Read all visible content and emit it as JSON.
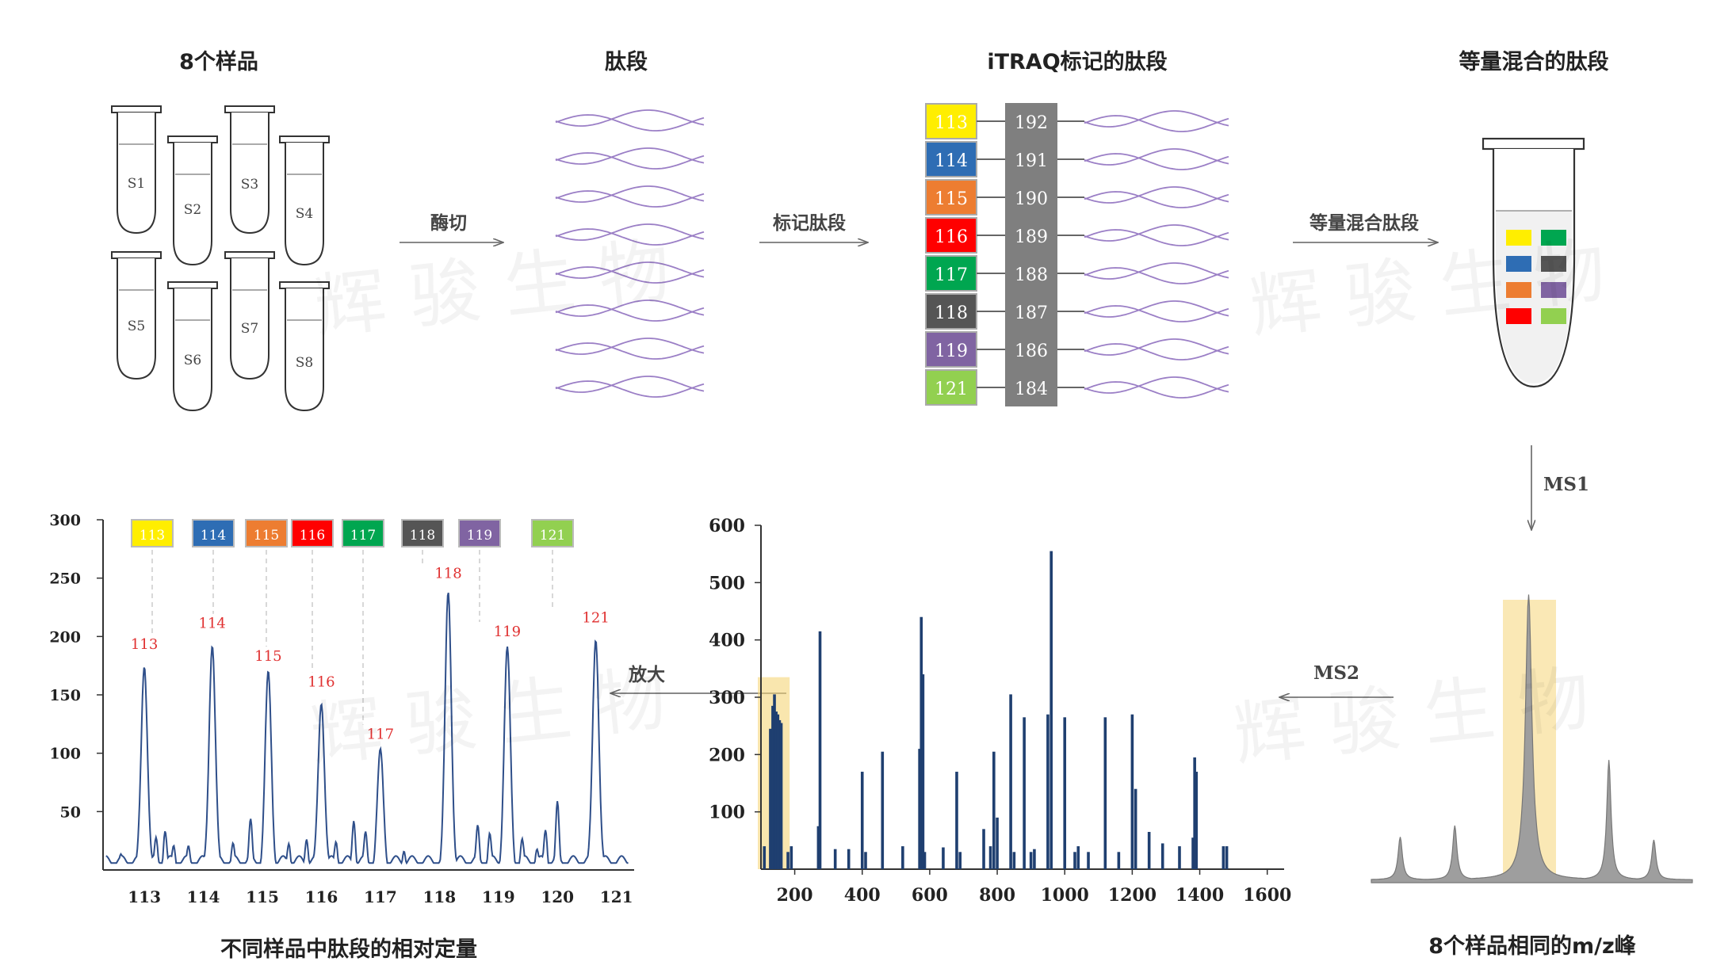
{
  "stages": {
    "samples": "8个样品",
    "peptides": "肽段",
    "labeled": "iTRAQ标记的肽段",
    "mixed": "等量混合的肽段",
    "same_peak": "8个样品相同的m/z峰",
    "relative": "不同样品中肽段的相对定量"
  },
  "arrows": {
    "digest": "酶切",
    "label": "标记肽段",
    "mix": "等量混合肽段",
    "ms1": "MS1",
    "ms2": "MS2",
    "zoom": "放大"
  },
  "watermark": "辉骏生物",
  "tubes": [
    "S1",
    "S2",
    "S3",
    "S4",
    "S5",
    "S6",
    "S7",
    "S8"
  ],
  "tags": [
    {
      "reporter": "113",
      "balance": "192",
      "color": "#ffee00"
    },
    {
      "reporter": "114",
      "balance": "191",
      "color": "#2e6db4"
    },
    {
      "reporter": "115",
      "balance": "190",
      "color": "#ed7d31"
    },
    {
      "reporter": "116",
      "balance": "189",
      "color": "#ff0000"
    },
    {
      "reporter": "117",
      "balance": "188",
      "color": "#00a650"
    },
    {
      "reporter": "118",
      "balance": "187",
      "color": "#555555"
    },
    {
      "reporter": "119",
      "balance": "186",
      "color": "#8064a2"
    },
    {
      "reporter": "121",
      "balance": "184",
      "color": "#92d050"
    }
  ],
  "chart_data": [
    {
      "type": "bar",
      "title": "",
      "xlabel": "",
      "ylabel": "",
      "xlim": [
        100,
        1650
      ],
      "ylim": [
        0,
        600
      ],
      "xticks": [
        200,
        400,
        600,
        800,
        1000,
        1200,
        1400,
        1600
      ],
      "yticks": [
        100,
        200,
        300,
        400,
        500,
        600
      ],
      "x": [
        110,
        128,
        135,
        140,
        145,
        150,
        155,
        160,
        180,
        190,
        270,
        275,
        320,
        360,
        400,
        410,
        460,
        520,
        570,
        575,
        580,
        585,
        640,
        680,
        690,
        760,
        780,
        790,
        800,
        840,
        850,
        880,
        900,
        910,
        950,
        960,
        1000,
        1030,
        1040,
        1070,
        1120,
        1160,
        1200,
        1210,
        1250,
        1290,
        1340,
        1380,
        1385,
        1390,
        1470,
        1480
      ],
      "values": [
        40,
        245,
        285,
        305,
        275,
        270,
        260,
        255,
        30,
        40,
        75,
        415,
        35,
        35,
        170,
        30,
        205,
        40,
        210,
        440,
        340,
        30,
        38,
        170,
        30,
        70,
        40,
        205,
        90,
        305,
        30,
        265,
        30,
        35,
        270,
        555,
        265,
        30,
        40,
        30,
        265,
        30,
        270,
        140,
        65,
        45,
        40,
        55,
        195,
        170,
        40,
        40
      ],
      "highlight": [
        100,
        185
      ]
    },
    {
      "type": "line",
      "title": "",
      "xlabel": "",
      "ylabel": "",
      "xlim": [
        112.3,
        121.3
      ],
      "ylim": [
        0,
        300
      ],
      "xticks": [
        "113",
        "114",
        "115",
        "116",
        "117",
        "118",
        "119",
        "120",
        "121"
      ],
      "yticks": [
        50,
        100,
        150,
        200,
        250,
        300
      ],
      "peaks": [
        {
          "x": 113.0,
          "y": 177,
          "label": "113"
        },
        {
          "x": 114.15,
          "y": 195,
          "label": "114"
        },
        {
          "x": 115.1,
          "y": 167,
          "label": "115"
        },
        {
          "x": 116.0,
          "y": 145,
          "label": "116"
        },
        {
          "x": 117.0,
          "y": 100,
          "label": "117"
        },
        {
          "x": 118.15,
          "y": 238,
          "label": "118"
        },
        {
          "x": 119.15,
          "y": 188,
          "label": "119"
        },
        {
          "x": 120.65,
          "y": 200,
          "label": "121"
        }
      ]
    },
    {
      "type": "area",
      "title": "",
      "peaks": [
        {
          "x": 0.09,
          "y": 0.15
        },
        {
          "x": 0.26,
          "y": 0.19
        },
        {
          "x": 0.49,
          "y": 1.0
        },
        {
          "x": 0.74,
          "y": 0.42
        },
        {
          "x": 0.88,
          "y": 0.14
        }
      ]
    }
  ]
}
